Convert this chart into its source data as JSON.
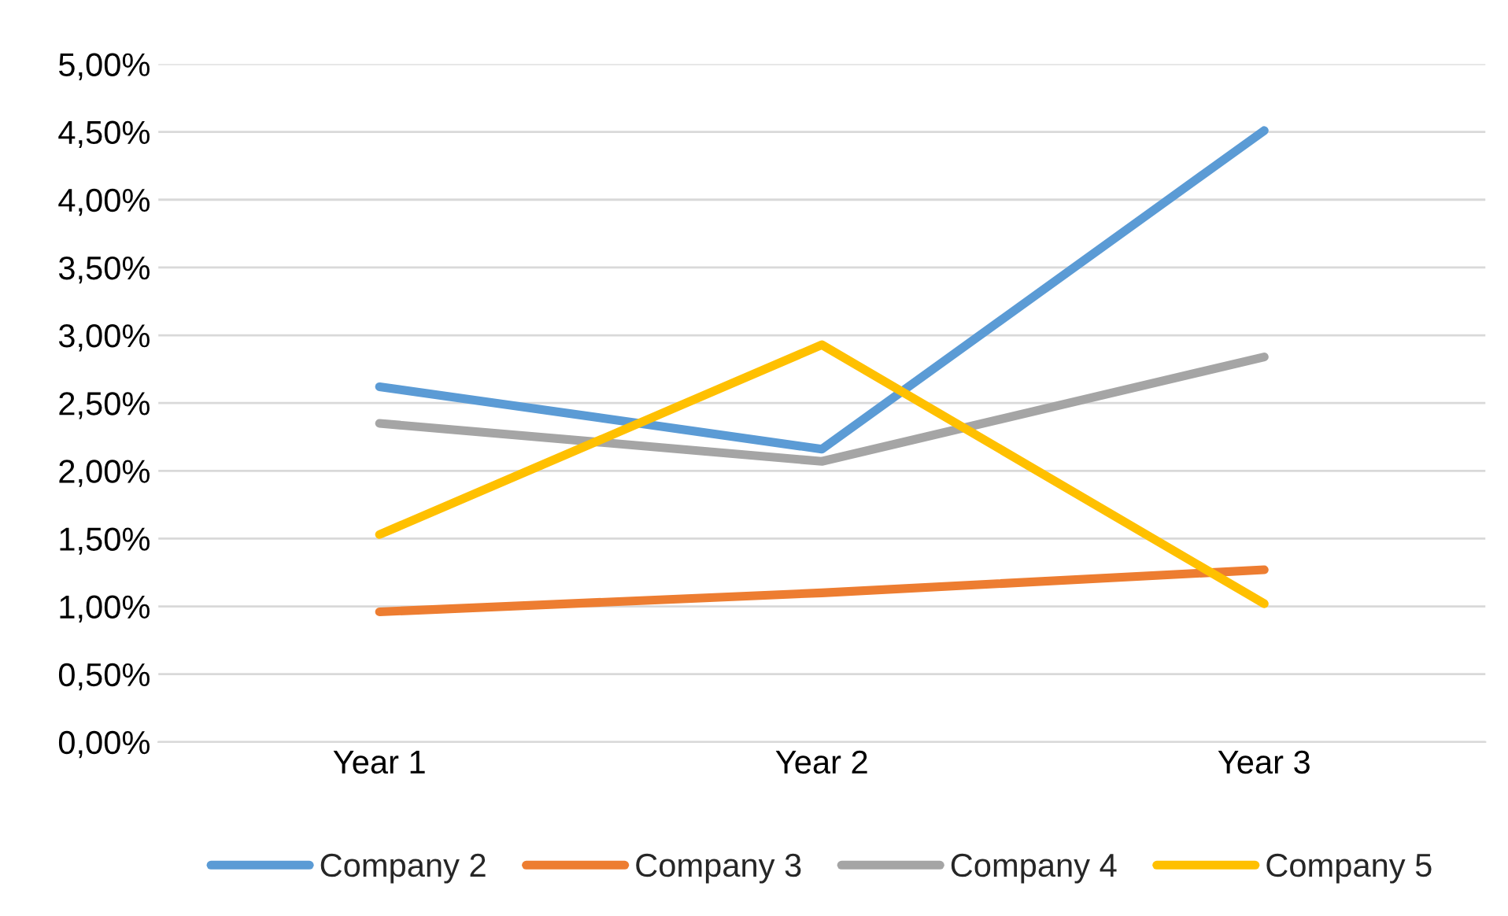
{
  "chart_data": {
    "type": "line",
    "categories": [
      "Year 1",
      "Year 2",
      "Year 3"
    ],
    "series": [
      {
        "name": "Company 2",
        "color": "#5b9bd5",
        "values": [
          2.62,
          2.16,
          4.51
        ]
      },
      {
        "name": "Company 3",
        "color": "#ed7d31",
        "values": [
          0.96,
          1.1,
          1.27
        ]
      },
      {
        "name": "Company 4",
        "color": "#a5a5a5",
        "values": [
          2.35,
          2.07,
          2.84
        ]
      },
      {
        "name": "Company 5",
        "color": "#ffc000",
        "values": [
          1.53,
          2.93,
          1.02
        ]
      }
    ],
    "ylim": [
      0,
      5
    ],
    "yticks": [
      {
        "value": 0,
        "label": "0,00%"
      },
      {
        "value": 0.5,
        "label": "0,50%"
      },
      {
        "value": 1,
        "label": "1,00%"
      },
      {
        "value": 1.5,
        "label": "1,50%"
      },
      {
        "value": 2,
        "label": "2,00%"
      },
      {
        "value": 2.5,
        "label": "2,50%"
      },
      {
        "value": 3,
        "label": "3,00%"
      },
      {
        "value": 3.5,
        "label": "3,50%"
      },
      {
        "value": 4,
        "label": "4,00%"
      },
      {
        "value": 4.5,
        "label": "4,50%"
      },
      {
        "value": 5,
        "label": "5,00%"
      }
    ],
    "grid": "y",
    "legend": "bottom",
    "marker": "none",
    "line_style": "solid"
  }
}
